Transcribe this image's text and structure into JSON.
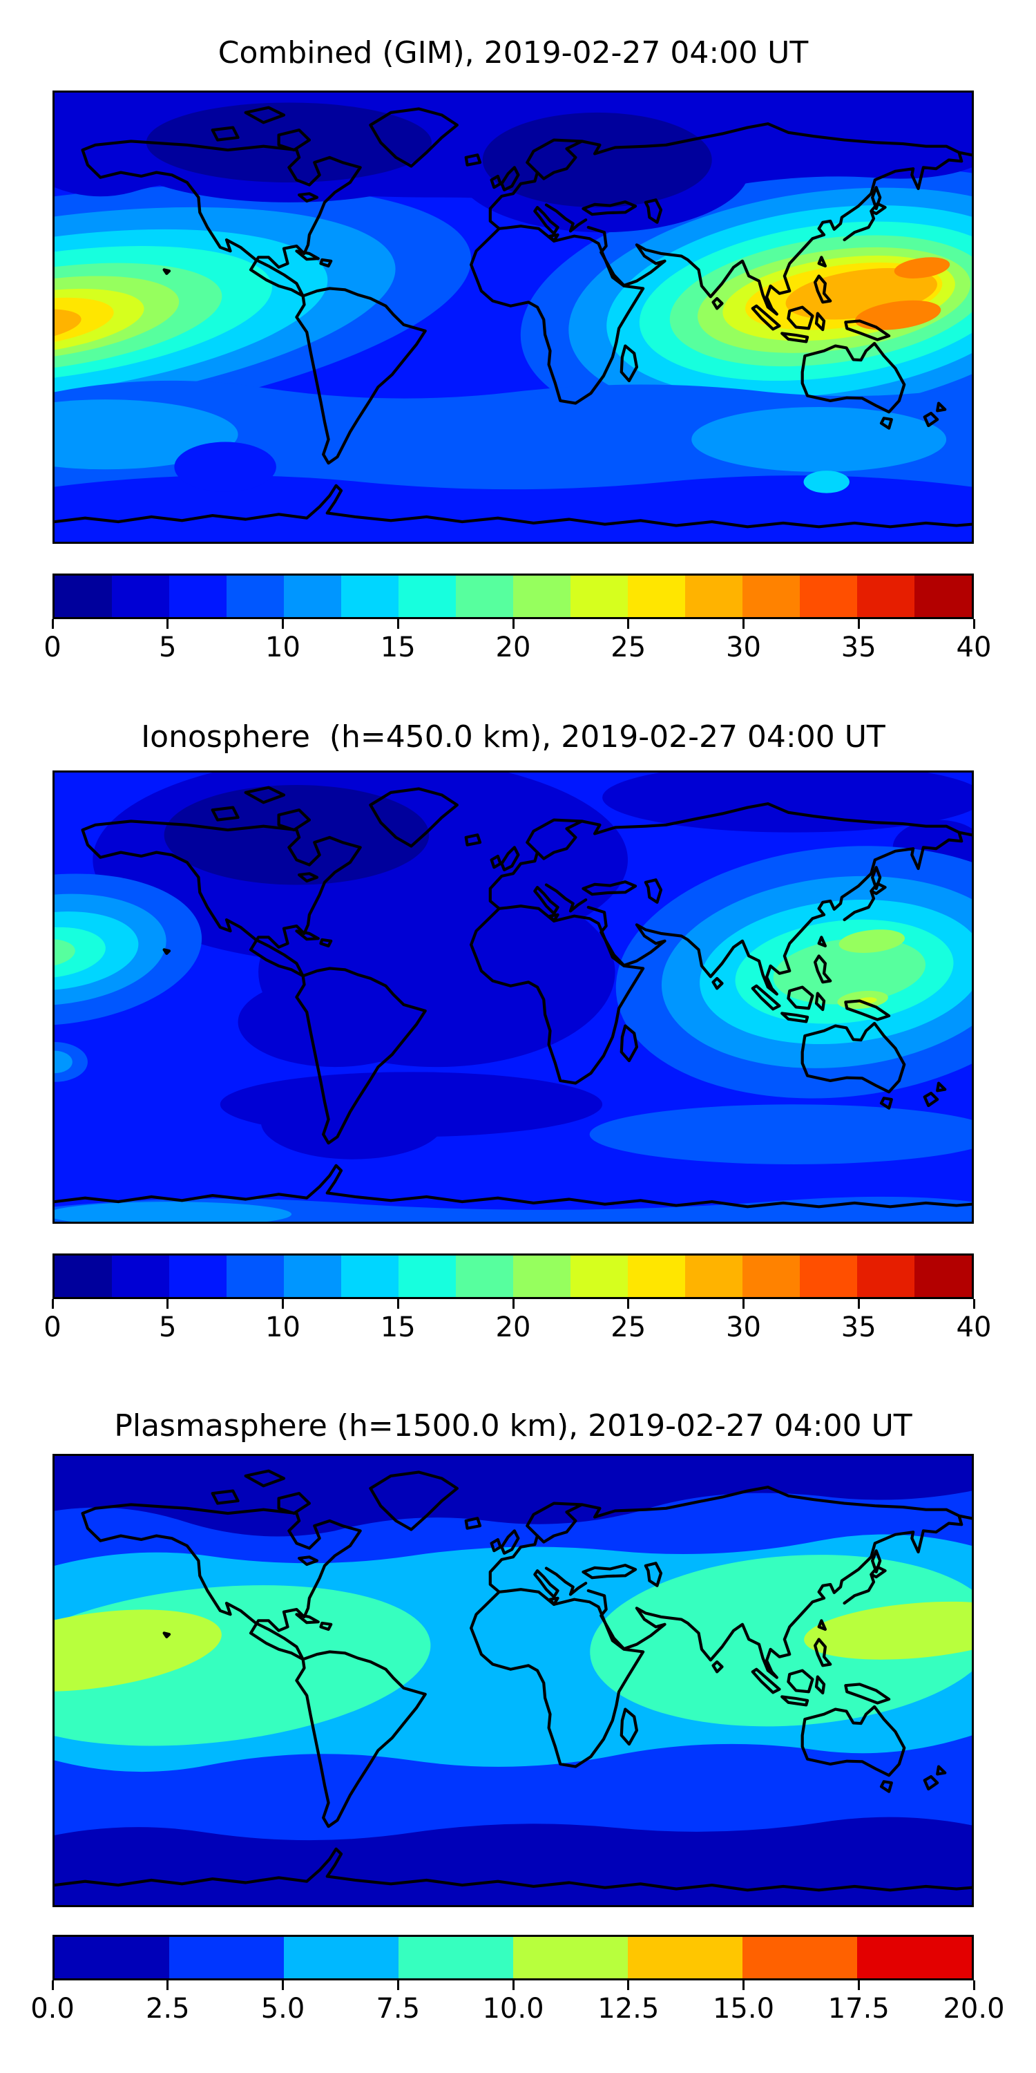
{
  "figure": {
    "background": "#ffffff",
    "colormap": "jet",
    "projection": "equirectangular world map with black coastlines"
  },
  "panels": [
    {
      "id": "combined",
      "title": "Combined (GIM), 2019-02-27 04:00 UT",
      "colorbar": {
        "min": 0,
        "max": 40,
        "segments": 16,
        "ticks": [
          "0",
          "5",
          "10",
          "15",
          "20",
          "25",
          "30",
          "35",
          "40"
        ],
        "palette": [
          "#00009c",
          "#0000d4",
          "#0017ff",
          "#0057ff",
          "#0096ff",
          "#00d6ff",
          "#17ffde",
          "#57ff9e",
          "#96ff5e",
          "#d6ff1e",
          "#ffe600",
          "#ffb300",
          "#ff8200",
          "#ff4f00",
          "#e61e00",
          "#b30000"
        ]
      }
    },
    {
      "id": "ionosphere",
      "title": "Ionosphere  (h=450.0 km), 2019-02-27 04:00 UT",
      "colorbar": {
        "min": 0,
        "max": 40,
        "segments": 16,
        "ticks": [
          "0",
          "5",
          "10",
          "15",
          "20",
          "25",
          "30",
          "35",
          "40"
        ],
        "palette": [
          "#00009c",
          "#0000d4",
          "#0017ff",
          "#0057ff",
          "#0096ff",
          "#00d6ff",
          "#17ffde",
          "#57ff9e",
          "#96ff5e",
          "#d6ff1e",
          "#ffe600",
          "#ffb300",
          "#ff8200",
          "#ff4f00",
          "#e61e00",
          "#b30000"
        ]
      }
    },
    {
      "id": "plasmasphere",
      "title": "Plasmasphere (h=1500.0 km), 2019-02-27 04:00 UT",
      "colorbar": {
        "min": 0,
        "max": 20,
        "segments": 8,
        "ticks": [
          "0.0",
          "2.5",
          "5.0",
          "7.5",
          "10.0",
          "12.5",
          "15.0",
          "17.5",
          "20.0"
        ],
        "palette": [
          "#0000b8",
          "#0036ff",
          "#00b8ff",
          "#36ffbf",
          "#b8ff3d",
          "#ffc600",
          "#ff6100",
          "#e30000"
        ]
      }
    }
  ],
  "chart_data": [
    {
      "type": "heatmap",
      "subtype": "filled-contour world map",
      "title": "Combined (GIM), 2019-02-27 04:00 UT",
      "datetime_ut": "2019-02-27 04:00 UT",
      "colormap": "jet (discrete, 16 bands)",
      "contour_levels": {
        "min": 0,
        "max": 40,
        "step": 2.5
      },
      "colorbar_ticks": [
        0,
        5,
        10,
        15,
        20,
        25,
        30,
        35,
        40
      ],
      "map_extent": {
        "lon": [
          -180,
          180
        ],
        "lat": [
          -90,
          90
        ]
      },
      "features": [
        {
          "name": "equatorial-anomaly-west-pacific-maximum",
          "approx_lon": 150,
          "approx_lat": -6,
          "peak_value": 32.5
        },
        {
          "name": "equatorial-anomaly-east-pacific-left-edge-maximum",
          "approx_lon": -178,
          "approx_lat": -10,
          "peak_value": 31
        },
        {
          "name": "high-latitude-minimum-canada-greenland",
          "approx_lon": -85,
          "approx_lat": 68,
          "value": 2
        },
        {
          "name": "high-latitude-minimum-scandinavia-russia",
          "approx_lon": 35,
          "approx_lat": 62,
          "value": 2
        },
        {
          "name": "mid-latitude-background",
          "value": 6
        }
      ]
    },
    {
      "type": "heatmap",
      "subtype": "filled-contour world map",
      "title": "Ionosphere  (h=450.0 km), 2019-02-27 04:00 UT",
      "datetime_ut": "2019-02-27 04:00 UT",
      "height_km": 450.0,
      "colormap": "jet (discrete, 16 bands)",
      "contour_levels": {
        "min": 0,
        "max": 40,
        "step": 2.5
      },
      "colorbar_ticks": [
        0,
        5,
        10,
        15,
        20,
        25,
        30,
        35,
        40
      ],
      "map_extent": {
        "lon": [
          -180,
          180
        ],
        "lat": [
          -90,
          90
        ]
      },
      "features": [
        {
          "name": "southeast-asia-pacific-maximum",
          "approx_lon": 140,
          "approx_lat": 0,
          "peak_value": 23
        },
        {
          "name": "east-pacific-left-edge-maximum",
          "approx_lon": -178,
          "approx_lat": 0,
          "peak_value": 18
        },
        {
          "name": "americas-atlantic-minimum-region",
          "approx_lon": -60,
          "approx_lat": 20,
          "value": 4
        },
        {
          "name": "background",
          "value": 6
        }
      ]
    },
    {
      "type": "heatmap",
      "subtype": "filled-contour world map",
      "title": "Plasmasphere (h=1500.0 km), 2019-02-27 04:00 UT",
      "datetime_ut": "2019-02-27 04:00 UT",
      "height_km": 1500.0,
      "colormap": "jet (discrete, 8 bands)",
      "contour_levels": {
        "min": 0,
        "max": 20,
        "step": 2.5
      },
      "colorbar_ticks": [
        0.0,
        2.5,
        5.0,
        7.5,
        10.0,
        12.5,
        15.0,
        17.5,
        20.0
      ],
      "map_extent": {
        "lon": [
          -180,
          180
        ],
        "lat": [
          -90,
          90
        ]
      },
      "features": [
        {
          "name": "equatorial-belt",
          "approx_lat_range": [
            -40,
            35
          ],
          "value": 7
        },
        {
          "name": "americas-east-pacific-maximum",
          "approx_lon": -160,
          "approx_lat": -10,
          "peak_value": 11
        },
        {
          "name": "west-pacific-maximum",
          "approx_lon": 160,
          "approx_lat": 0,
          "peak_value": 11
        },
        {
          "name": "polar-minima-north-and-south",
          "value": 1.5
        }
      ]
    }
  ]
}
